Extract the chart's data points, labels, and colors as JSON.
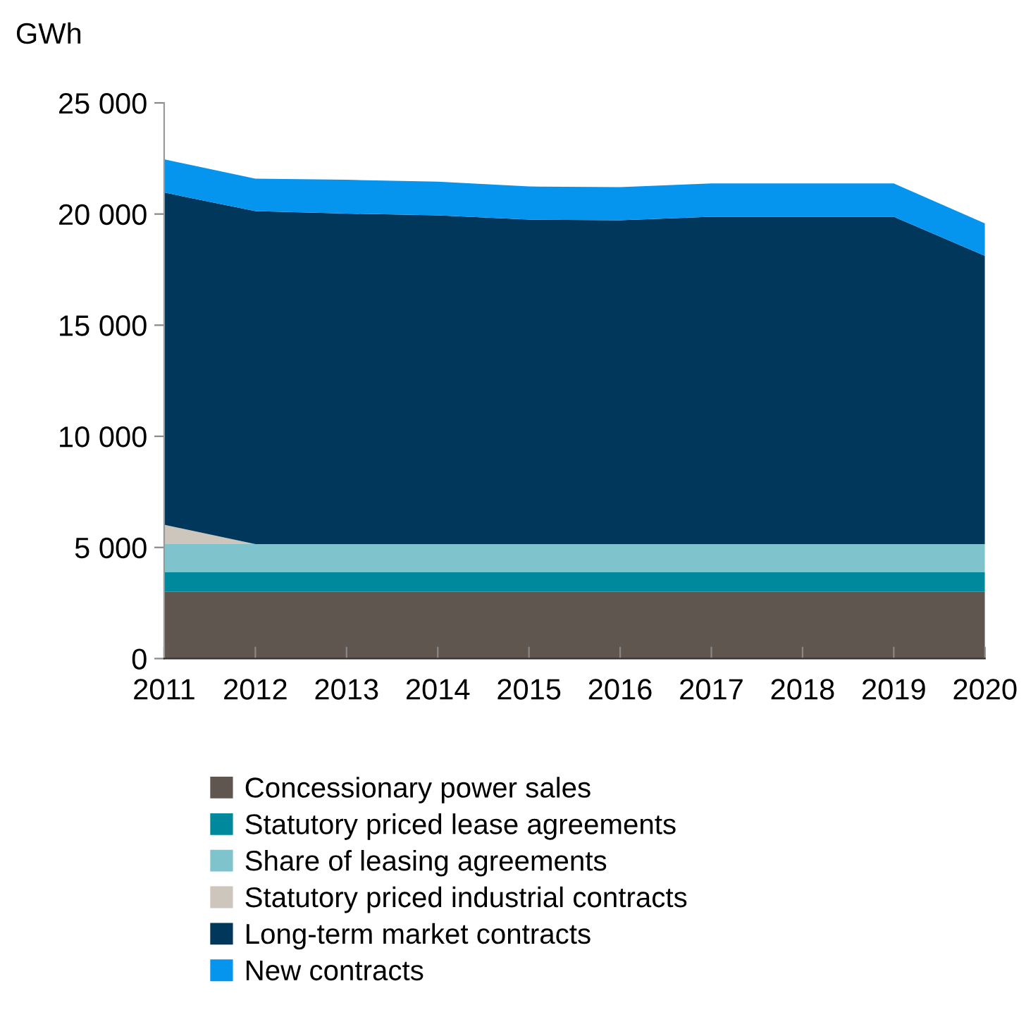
{
  "chart_data": {
    "type": "area",
    "stacked": true,
    "ylabel": "GWh",
    "x": [
      2011,
      2012,
      2013,
      2014,
      2015,
      2016,
      2017,
      2018,
      2019,
      2020
    ],
    "xlim": [
      2011,
      2020
    ],
    "xticks": [
      2011,
      2012,
      2013,
      2014,
      2015,
      2016,
      2017,
      2018,
      2019,
      2020
    ],
    "ylim": [
      0,
      25000
    ],
    "yticks": [
      {
        "value": 0,
        "label": "0"
      },
      {
        "value": 5000,
        "label": "5 000"
      },
      {
        "value": 10000,
        "label": "10 000"
      },
      {
        "value": 15000,
        "label": "15 000"
      },
      {
        "value": 20000,
        "label": "20 000"
      },
      {
        "value": 25000,
        "label": "25 000"
      }
    ],
    "grid": false,
    "legend": "bottom",
    "series": [
      {
        "name": "Concessionary power sales",
        "color": "#5f5650",
        "values": [
          3000,
          3000,
          3000,
          3000,
          3000,
          3000,
          3000,
          3000,
          3000,
          3000
        ]
      },
      {
        "name": "Statutory priced lease agreements",
        "color": "#00889c",
        "values": [
          900,
          900,
          900,
          900,
          900,
          900,
          900,
          900,
          900,
          900
        ]
      },
      {
        "name": "Share of leasing agreements",
        "color": "#7fc4cc",
        "values": [
          1250,
          1250,
          1250,
          1250,
          1250,
          1250,
          1250,
          1250,
          1250,
          1250
        ]
      },
      {
        "name": "Statutory priced industrial contracts",
        "color": "#ccc6bd",
        "values": [
          870,
          0,
          0,
          0,
          0,
          0,
          0,
          0,
          0,
          0
        ]
      },
      {
        "name": "Long-term market contracts",
        "color": "#02375c",
        "values": [
          14950,
          14980,
          14870,
          14790,
          14600,
          14570,
          14730,
          14730,
          14730,
          12970
        ]
      },
      {
        "name": "New contracts",
        "color": "#0595ee",
        "values": [
          1490,
          1460,
          1520,
          1520,
          1490,
          1490,
          1500,
          1500,
          1500,
          1460
        ]
      }
    ]
  }
}
